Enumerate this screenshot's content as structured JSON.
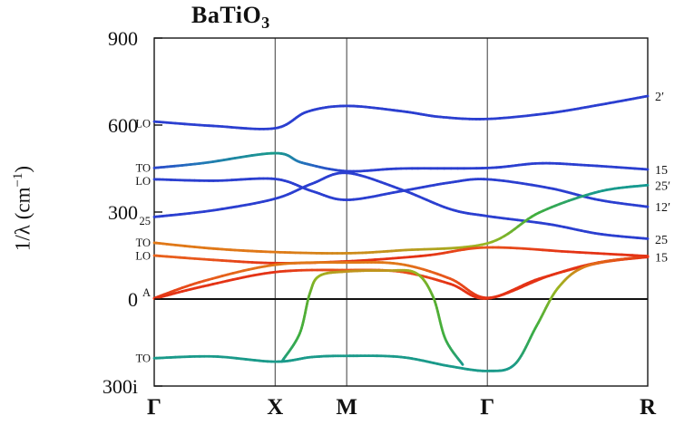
{
  "chart_data": {
    "type": "line",
    "title": "BaTiO3",
    "title_parts": {
      "base": "BaTiO",
      "subscript": "3"
    },
    "y_axis": {
      "label": "1/λ (cm−1)",
      "label_parts": {
        "pre": "1/λ (cm",
        "sup": "−1",
        "post": ")"
      },
      "range": [
        -300,
        900
      ],
      "ticks": [
        {
          "label": "900",
          "value": 900
        },
        {
          "label": "600",
          "value": 600
        },
        {
          "label": "300",
          "value": 300
        },
        {
          "label": "0",
          "value": 0
        },
        {
          "label": "300i",
          "value": -300
        }
      ]
    },
    "x_axis": {
      "ticks": [
        {
          "label": "Γ",
          "pos": 0
        },
        {
          "label": "X",
          "pos": 0.245
        },
        {
          "label": "M",
          "pos": 0.39
        },
        {
          "label": "Γ",
          "pos": 0.675
        },
        {
          "label": "R",
          "pos": 1.0
        }
      ]
    },
    "zero_line": 0,
    "left_mode_labels": [
      {
        "text": "LO",
        "value": 605
      },
      {
        "text": "TO",
        "value": 452
      },
      {
        "text": "LO",
        "value": 406
      },
      {
        "text": "25",
        "value": 268
      },
      {
        "text": "TO",
        "value": 194
      },
      {
        "text": "LO",
        "value": 148
      },
      {
        "text": "A",
        "value": 22
      },
      {
        "text": "TO",
        "value": -204
      }
    ],
    "right_mode_labels": [
      {
        "text": "2′",
        "value": 700
      },
      {
        "text": "15",
        "value": 447
      },
      {
        "text": "25′",
        "value": 392
      },
      {
        "text": "12′",
        "value": 318
      },
      {
        "text": "25",
        "value": 207
      },
      {
        "text": "15",
        "value": 145
      }
    ],
    "series": [
      {
        "name": "lo3-2prime",
        "right_label": "2′",
        "points": [
          [
            0,
            612,
            "#2b3fd0"
          ],
          [
            0.12,
            597,
            "#2b3fd0"
          ],
          [
            0.245,
            589,
            "#2b3fd0"
          ],
          [
            0.31,
            646,
            "#2b3fd0"
          ],
          [
            0.39,
            666,
            "#2b3fd0"
          ],
          [
            0.5,
            648,
            "#2b3fd0"
          ],
          [
            0.58,
            628,
            "#2b3fd0"
          ],
          [
            0.675,
            621,
            "#2b3fd0"
          ],
          [
            0.8,
            641,
            "#2b3fd0"
          ],
          [
            0.9,
            669,
            "#2b3fd0"
          ],
          [
            1,
            700,
            "#2b3fd0"
          ]
        ]
      },
      {
        "name": "to3-15",
        "right_label": "15",
        "points": [
          [
            0,
            452,
            "#2b3fd0"
          ],
          [
            0.1,
            469,
            "#2277b8"
          ],
          [
            0.245,
            503,
            "#1a9a8a"
          ],
          [
            0.3,
            470,
            "#2277b8"
          ],
          [
            0.39,
            441,
            "#2b3fd0"
          ],
          [
            0.5,
            450,
            "#2b3fd0"
          ],
          [
            0.675,
            452,
            "#2b3fd0"
          ],
          [
            0.78,
            468,
            "#2b3fd0"
          ],
          [
            0.88,
            461,
            "#2b3fd0"
          ],
          [
            1,
            447,
            "#2b3fd0"
          ]
        ]
      },
      {
        "name": "lo2-12prime",
        "right_label": "12′",
        "points": [
          [
            0,
            413,
            "#2b3fd0"
          ],
          [
            0.12,
            408,
            "#2b3fd0"
          ],
          [
            0.245,
            414,
            "#2b3fd0"
          ],
          [
            0.32,
            372,
            "#2b3fd0"
          ],
          [
            0.39,
            342,
            "#2b3fd0"
          ],
          [
            0.5,
            372,
            "#2b3fd0"
          ],
          [
            0.6,
            402,
            "#2b3fd0"
          ],
          [
            0.675,
            413,
            "#2b3fd0"
          ],
          [
            0.8,
            383,
            "#2b3fd0"
          ],
          [
            0.9,
            342,
            "#2b3fd0"
          ],
          [
            1,
            318,
            "#2b3fd0"
          ]
        ]
      },
      {
        "name": "silent25-25",
        "right_label": "25",
        "points": [
          [
            0,
            283,
            "#2b3fd0"
          ],
          [
            0.12,
            306,
            "#2b3fd0"
          ],
          [
            0.245,
            346,
            "#2b3fd0"
          ],
          [
            0.32,
            398,
            "#2b3fd0"
          ],
          [
            0.39,
            435,
            "#2b3fd0"
          ],
          [
            0.5,
            378,
            "#2b3fd0"
          ],
          [
            0.6,
            310,
            "#2b3fd0"
          ],
          [
            0.675,
            286,
            "#2b3fd0"
          ],
          [
            0.8,
            258,
            "#2b3fd0"
          ],
          [
            0.9,
            225,
            "#2b3fd0"
          ],
          [
            1,
            208,
            "#2b3fd0"
          ]
        ]
      },
      {
        "name": "to2-25prime",
        "right_label": "25′",
        "points": [
          [
            0,
            194,
            "#e07818"
          ],
          [
            0.12,
            174,
            "#e07818"
          ],
          [
            0.245,
            162,
            "#e07818"
          ],
          [
            0.39,
            158,
            "#d08a1a"
          ],
          [
            0.5,
            168,
            "#c0951d"
          ],
          [
            0.675,
            192,
            "#9ab520"
          ],
          [
            0.78,
            298,
            "#3fae3f"
          ],
          [
            0.9,
            370,
            "#1a9a8a"
          ],
          [
            1,
            393,
            "#159a92"
          ]
        ]
      },
      {
        "name": "lo1",
        "right_label": "",
        "points": [
          [
            0,
            150,
            "#e8651c"
          ],
          [
            0.12,
            135,
            "#e8541c"
          ],
          [
            0.245,
            124,
            "#e43315"
          ],
          [
            0.39,
            130,
            "#e43315"
          ],
          [
            0.55,
            150,
            "#e43315"
          ],
          [
            0.675,
            178,
            "#e8541c"
          ],
          [
            0.85,
            162,
            "#e43315"
          ],
          [
            1,
            148,
            "#e43315"
          ]
        ]
      },
      {
        "name": "la-acoustic",
        "right_label": "15",
        "points": [
          [
            0,
            3,
            "#e43315"
          ],
          [
            0.1,
            62,
            "#e8541c"
          ],
          [
            0.245,
            118,
            "#e07818"
          ],
          [
            0.39,
            126,
            "#e07818"
          ],
          [
            0.5,
            120,
            "#e07818"
          ],
          [
            0.6,
            70,
            "#e8541c"
          ],
          [
            0.675,
            4,
            "#e43315"
          ],
          [
            0.78,
            70,
            "#e43315"
          ],
          [
            0.9,
            124,
            "#e8541c"
          ],
          [
            1,
            145,
            "#e43315"
          ]
        ]
      },
      {
        "name": "ta-acoustic",
        "right_label": "",
        "points": [
          [
            0,
            1,
            "#e43315"
          ],
          [
            0.1,
            44,
            "#e43315"
          ],
          [
            0.245,
            93,
            "#e43315"
          ],
          [
            0.39,
            100,
            "#e8541c"
          ],
          [
            0.5,
            94,
            "#e8541c"
          ],
          [
            0.6,
            52,
            "#e43315"
          ],
          [
            0.675,
            2,
            "#e43315"
          ],
          [
            0.8,
            80,
            "#e43315"
          ],
          [
            0.9,
            126,
            "#e43315"
          ],
          [
            1,
            146,
            "#e43315"
          ]
        ]
      },
      {
        "name": "soft-plateau",
        "right_label": "",
        "points": [
          [
            0.26,
            -212,
            "#1a9a8a"
          ],
          [
            0.295,
            -118,
            "#3fae3f"
          ],
          [
            0.315,
            18,
            "#5fae2f"
          ],
          [
            0.335,
            80,
            "#9ab520"
          ],
          [
            0.39,
            95,
            "#c0951d"
          ],
          [
            0.47,
            98,
            "#c0951d"
          ],
          [
            0.53,
            90,
            "#9ab520"
          ],
          [
            0.565,
            8,
            "#5fae2f"
          ],
          [
            0.59,
            -138,
            "#3fae3f"
          ],
          [
            0.625,
            -226,
            "#1a9a8a"
          ]
        ]
      },
      {
        "name": "soft-to1",
        "right_label": "",
        "points": [
          [
            0,
            -204,
            "#1a9a8a"
          ],
          [
            0.12,
            -198,
            "#1a9a8a"
          ],
          [
            0.245,
            -216,
            "#1a9a8a"
          ],
          [
            0.32,
            -200,
            "#1a9a8a"
          ],
          [
            0.39,
            -196,
            "#1a9a8a"
          ],
          [
            0.5,
            -200,
            "#1a9a8a"
          ],
          [
            0.6,
            -232,
            "#1a9a8a"
          ],
          [
            0.675,
            -248,
            "#1a9a8a"
          ],
          [
            0.73,
            -226,
            "#1a9a8a"
          ],
          [
            0.775,
            -92,
            "#3fae3f"
          ],
          [
            0.82,
            42,
            "#9ab520"
          ],
          [
            0.88,
            116,
            "#e07818"
          ],
          [
            1,
            148,
            "#e43315"
          ]
        ]
      }
    ]
  }
}
